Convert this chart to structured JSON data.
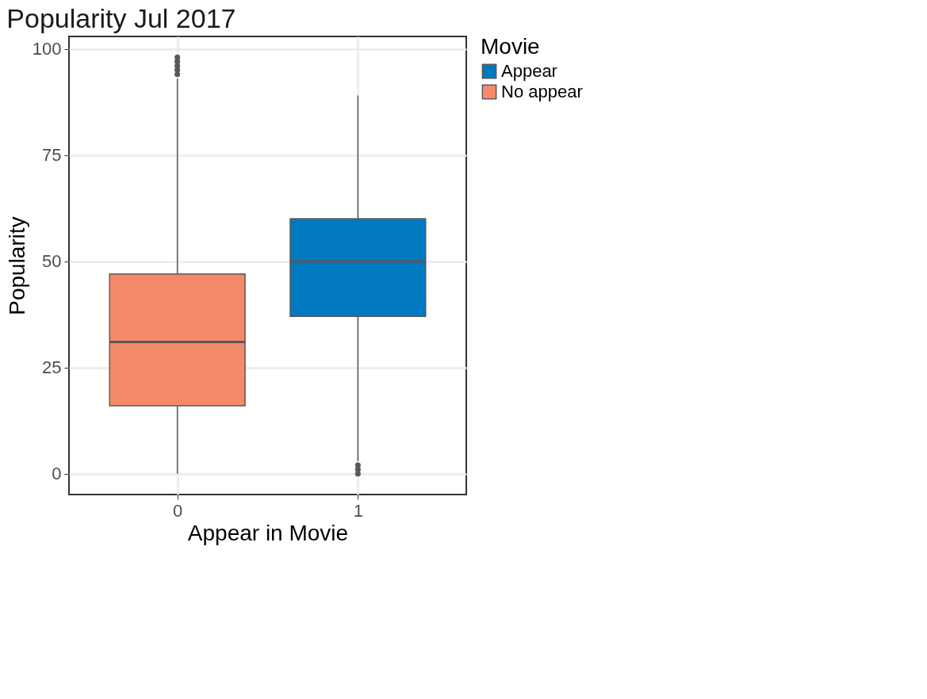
{
  "chart_data": {
    "type": "box",
    "title": "Popularity Jul 2017",
    "xlabel": "Appear in Movie",
    "ylabel": "Popularity",
    "legend_title": "Movie",
    "categories": [
      "0",
      "1"
    ],
    "series": [
      {
        "name": "Appear",
        "color": "#0179c0",
        "boxes": [
          null,
          {
            "low": 3,
            "q1": 37,
            "median": 50,
            "q3": 60,
            "high": 89,
            "outliers": [
              0,
              1,
              2
            ]
          }
        ]
      },
      {
        "name": "No appear",
        "color": "#f6896b",
        "boxes": [
          {
            "low": 0,
            "q1": 16,
            "median": 31,
            "q3": 47,
            "high": 93,
            "outliers": [
              94,
              95,
              96,
              97,
              98
            ]
          },
          null
        ]
      }
    ],
    "ylim": [
      -4.9,
      102.9
    ],
    "yticks": [
      0,
      25,
      50,
      75,
      100
    ],
    "grid": true,
    "legend": "right"
  }
}
